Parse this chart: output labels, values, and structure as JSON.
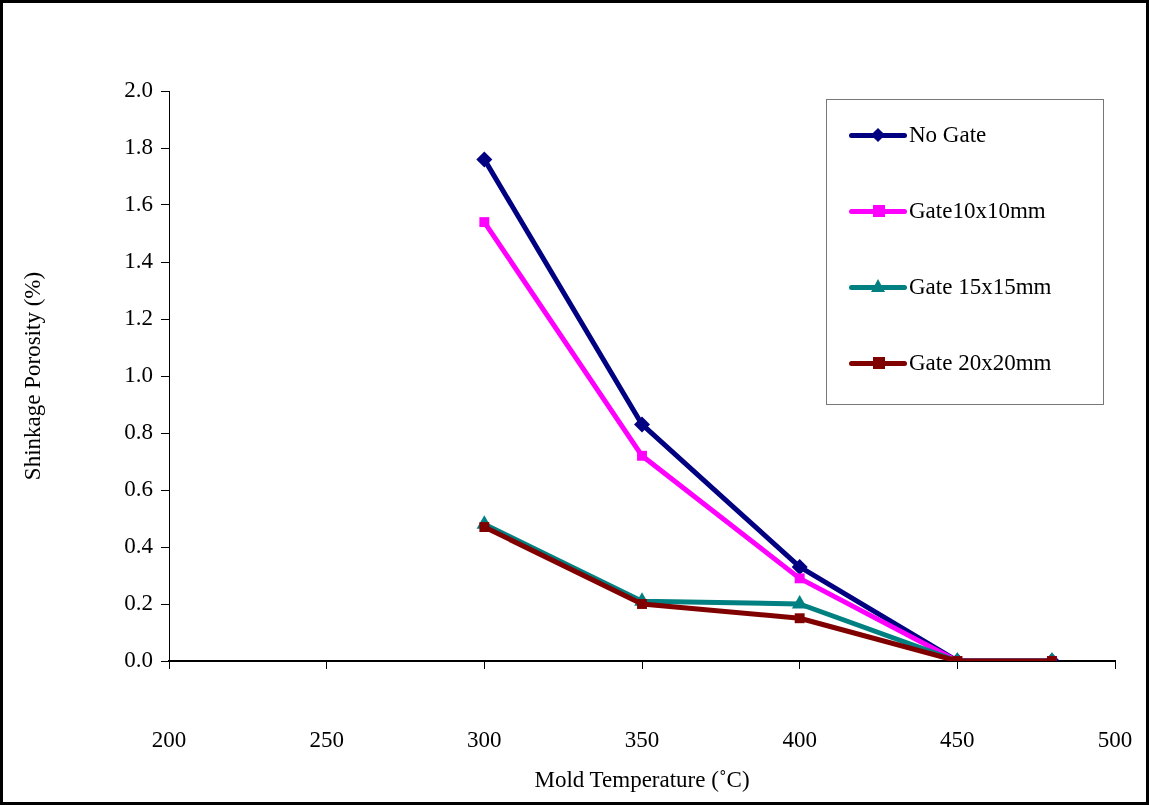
{
  "chart_data": {
    "type": "line",
    "xlabel": "Mold Temperature (˚C)",
    "ylabel": "Shinkage Porosity (%)",
    "x": [
      300,
      350,
      400,
      450,
      480
    ],
    "series": [
      {
        "name": "No Gate",
        "color": "#000080",
        "marker": "diamond",
        "values": [
          1.76,
          0.83,
          0.33,
          0,
          0
        ]
      },
      {
        "name": "Gate10x10mm",
        "color": "#ff00ff",
        "marker": "square",
        "values": [
          1.54,
          0.72,
          0.29,
          0,
          0
        ]
      },
      {
        "name": "Gate 15x15mm",
        "color": "#008080",
        "marker": "triangle",
        "values": [
          0.48,
          0.21,
          0.2,
          0,
          0
        ]
      },
      {
        "name": "Gate 20x20mm",
        "color": "#800000",
        "marker": "square",
        "values": [
          0.47,
          0.2,
          0.15,
          0,
          0
        ]
      }
    ],
    "xlim": [
      200,
      500
    ],
    "xticks": [
      200,
      250,
      300,
      350,
      400,
      450,
      500
    ],
    "ylim": [
      0,
      2
    ],
    "yticks": [
      {
        "value": 0,
        "label": "0.0"
      },
      {
        "value": 0.2,
        "label": "0.2"
      },
      {
        "value": 0.4,
        "label": "0.4"
      },
      {
        "value": 0.6,
        "label": "0.6"
      },
      {
        "value": 0.8,
        "label": "0.8"
      },
      {
        "value": 1,
        "label": "1.0"
      },
      {
        "value": 1.2,
        "label": "1.2"
      },
      {
        "value": 1.4,
        "label": "1.4"
      },
      {
        "value": 1.6,
        "label": "1.6"
      },
      {
        "value": 1.8,
        "label": "1.8"
      },
      {
        "value": 2,
        "label": "2.0"
      }
    ],
    "grid": false,
    "legend": "top right",
    "line_style": "solid"
  }
}
